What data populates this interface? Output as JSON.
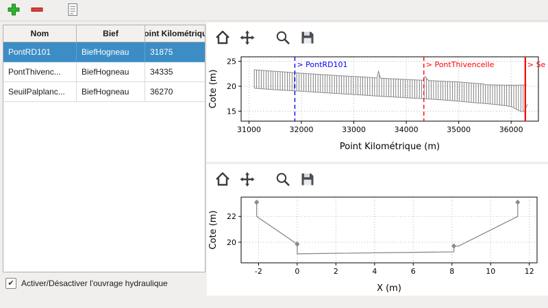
{
  "toolbar": {
    "add_tooltip": "add",
    "remove_tooltip": "remove",
    "edit_tooltip": "edit"
  },
  "icons": {
    "check": "✔"
  },
  "table": {
    "columns": [
      "Nom",
      "Bief",
      "Point Kilométrique"
    ],
    "rows": [
      {
        "nom": "PontRD101",
        "bief": "BiefHogneau",
        "pk": "31875",
        "selected": true
      },
      {
        "nom": "PontThivenc...",
        "bief": "BiefHogneau",
        "pk": "34335",
        "selected": false
      },
      {
        "nom": "SeuilPalplanc...",
        "bief": "BiefHogneau",
        "pk": "36270",
        "selected": false
      }
    ]
  },
  "checkbox": {
    "label": "Activer/Désactiver l'ouvrage hydraulique",
    "checked": true
  },
  "colors": {
    "selection": "#3c8dc5",
    "grid": "#b5b5b5",
    "profile_line": "#8a8a8a",
    "hatch": "#4d4d4d",
    "annotation_blue": "#0000ff",
    "annotation_red": "#ff0000"
  },
  "chart_data": [
    {
      "type": "line",
      "xlabel": "Point Kilométrique (m)",
      "ylabel": "Cote (m)",
      "xlim": [
        30850,
        36520
      ],
      "ylim": [
        13.0,
        25.9
      ],
      "xticks": [
        31000,
        32000,
        33000,
        34000,
        35000,
        36000
      ],
      "yticks": [
        15,
        20,
        25
      ],
      "grid": true,
      "series": [
        {
          "name": "berge-crete",
          "color": "#8a8a8a",
          "width": 1,
          "points": [
            [
              31100,
              23.3
            ],
            [
              31400,
              23.05
            ],
            [
              31700,
              22.85
            ],
            [
              32000,
              22.6
            ],
            [
              32300,
              22.4
            ],
            [
              32600,
              22.2
            ],
            [
              32900,
              22.0
            ],
            [
              33200,
              21.85
            ],
            [
              33440,
              21.65
            ],
            [
              33470,
              23.0
            ],
            [
              33510,
              21.6
            ],
            [
              33800,
              21.45
            ],
            [
              34100,
              21.3
            ],
            [
              34320,
              21.2
            ],
            [
              34360,
              21.95
            ],
            [
              34420,
              21.15
            ],
            [
              34700,
              21.0
            ],
            [
              35000,
              20.85
            ],
            [
              35300,
              20.6
            ],
            [
              35480,
              20.45
            ],
            [
              35520,
              20.3
            ],
            [
              35800,
              20.25
            ],
            [
              36100,
              20.2
            ],
            [
              36300,
              20.3
            ]
          ]
        },
        {
          "name": "fond-lit",
          "color": "#8a8a8a",
          "width": 1,
          "points": [
            [
              31100,
              19.6
            ],
            [
              31500,
              19.3
            ],
            [
              32000,
              19.0
            ],
            [
              32500,
              18.65
            ],
            [
              33000,
              18.35
            ],
            [
              33500,
              18.0
            ],
            [
              34000,
              17.7
            ],
            [
              34335,
              17.5
            ],
            [
              34700,
              17.25
            ],
            [
              35000,
              17.0
            ],
            [
              35300,
              16.7
            ],
            [
              35600,
              16.45
            ],
            [
              35900,
              16.1
            ],
            [
              36020,
              15.85
            ],
            [
              36120,
              15.25
            ],
            [
              36200,
              14.9
            ],
            [
              36260,
              15.05
            ],
            [
              36310,
              16.4
            ]
          ]
        }
      ],
      "hatch": {
        "top": 0,
        "bottom": 1,
        "start": 31100,
        "end": 36300,
        "step": 45,
        "color": "#4d4d4d"
      },
      "vlines": [
        {
          "x": 31875,
          "label": "> PontRD101",
          "color": "#0000ff",
          "dash": true,
          "width": 1.4
        },
        {
          "x": 34335,
          "label": "> PontThivencelle",
          "color": "#ff0000",
          "dash": true,
          "width": 1.4
        },
        {
          "x": 36270,
          "label": "> SeuilPalplanches",
          "color": "#ff0000",
          "dash": false,
          "width": 2.2
        }
      ]
    },
    {
      "type": "line",
      "xlabel": "X (m)",
      "ylabel": "Cote (m)",
      "xlim": [
        -2.9,
        12.4
      ],
      "ylim": [
        18.4,
        23.5
      ],
      "xticks": [
        -2,
        0,
        2,
        4,
        6,
        8,
        10,
        12
      ],
      "yticks": [
        20,
        22
      ],
      "grid": true,
      "series": [
        {
          "name": "section-travers",
          "color": "#8a8a8a",
          "width": 1.3,
          "points": [
            [
              -2.1,
              23.1
            ],
            [
              -2.1,
              22.0
            ],
            [
              0,
              19.85
            ],
            [
              0,
              19.1
            ],
            [
              8.1,
              19.25
            ],
            [
              8.1,
              19.7
            ],
            [
              8.35,
              19.7
            ],
            [
              11.4,
              22.0
            ],
            [
              11.4,
              23.1
            ]
          ]
        }
      ],
      "markers": [
        [
          -2.1,
          23.1
        ],
        [
          0,
          19.85
        ],
        [
          8.1,
          19.7
        ],
        [
          11.4,
          23.1
        ]
      ],
      "marker_color": "#8a8a8a"
    }
  ]
}
